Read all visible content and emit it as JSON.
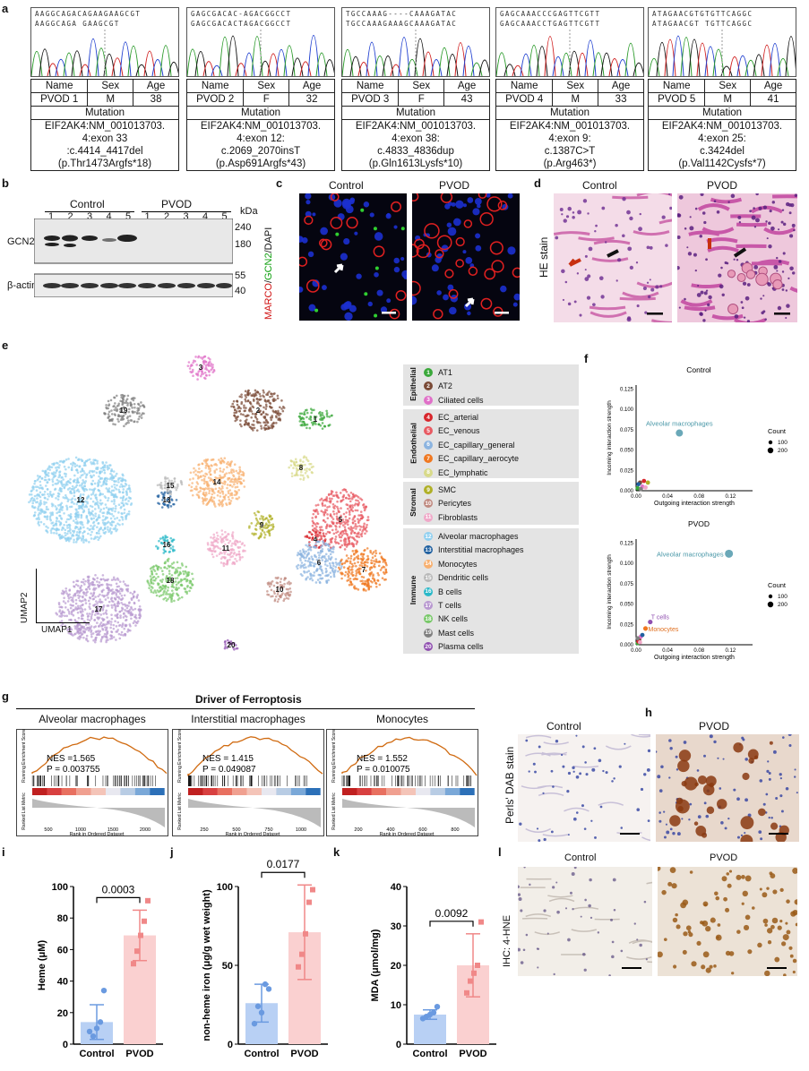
{
  "panel_labels": {
    "a": "a",
    "b": "b",
    "c": "c",
    "d": "d",
    "e": "e",
    "f": "f",
    "g": "g",
    "h": "h",
    "i": "i",
    "j": "j",
    "k": "k",
    "l": "l"
  },
  "panel_a": {
    "patients": [
      {
        "seq_top": "AAGGCAGACAGAAGAAGCGT",
        "seq_bot": "AAGGCAGA          GAAGCGT",
        "name_h": "Name",
        "sex_h": "Sex",
        "age_h": "Age",
        "name": "PVOD 1",
        "sex": "M",
        "age": "38",
        "mut_h": "Mutation",
        "m1": "EIF2AK4:NM_001013703.",
        "m2": "4:exon 33",
        "m3": ":c.4414_4417del",
        "m4": "(p.Thr1473Argfs*18)"
      },
      {
        "seq_top": "GAGCGACAC-AGACGGCCT",
        "seq_bot": "GAGCGACACTAGACGGCCT",
        "name_h": "Name",
        "sex_h": "Sex",
        "age_h": "Age",
        "name": "PVOD 2",
        "sex": "F",
        "age": "32",
        "mut_h": "Mutation",
        "m1": "EIF2AK4:NM_001013703.",
        "m2": "4:exon 12:",
        "m3": "c.2069_2070insT",
        "m4": "(p.Asp691Argfs*43)"
      },
      {
        "seq_top": "TGCCAAAG----CAAAGATAC",
        "seq_bot": "TGCCAAAGAAAGCAAAGATAC",
        "name_h": "Name",
        "sex_h": "Sex",
        "age_h": "Age",
        "name": "PVOD 3",
        "sex": "F",
        "age": "43",
        "mut_h": "Mutation",
        "m1": "EIF2AK4:NM_001013703.",
        "m2": "4:exon 38:",
        "m3": "c.4833_4836dup",
        "m4": "(p.Gln1613Lysfs*10)"
      },
      {
        "seq_top": "GAGCAAACCCGAGTTCGTT",
        "seq_bot": "GAGCAAACCTGAGTTCGTT",
        "name_h": "Name",
        "sex_h": "Sex",
        "age_h": "Age",
        "name": "PVOD 4",
        "sex": "M",
        "age": "33",
        "mut_h": "Mutation",
        "m1": "EIF2AK4:NM_001013703.",
        "m2": "4:exon 9:",
        "m3": "c.1387C>T",
        "m4": "(p.Arg463*)"
      },
      {
        "seq_top": "ATAGAACGTGTGTTCAGGC",
        "seq_bot": "ATAGAACGT TGTTCAGGC",
        "name_h": "Name",
        "sex_h": "Sex",
        "age_h": "Age",
        "name": "PVOD 5",
        "sex": "M",
        "age": "41",
        "mut_h": "Mutation",
        "m1": "EIF2AK4:NM_001013703.",
        "m2": "4:exon 25:",
        "m3": "c.3424del",
        "m4": "(p.Val1142Cysfs*7)"
      }
    ]
  },
  "panel_b": {
    "control": "Control",
    "pvod": "PVOD",
    "lanes": [
      "1",
      "2",
      "3",
      "4",
      "5",
      "1",
      "2",
      "3",
      "4",
      "5"
    ],
    "kda": "kDa",
    "m240": "240",
    "m180": "180",
    "m55": "55",
    "m40": "40",
    "gcn2": "GCN2",
    "actin": "β-actin"
  },
  "panel_c": {
    "control": "Control",
    "pvod": "PVOD",
    "stain_marco": "MARCO",
    "stain_slash1": "/",
    "stain_gcn2": "GCN2",
    "stain_dapi": "/DAPI"
  },
  "panel_d": {
    "control": "Control",
    "pvod": "PVOD",
    "stain": "HE stain"
  },
  "panel_e": {
    "axis_y": "UMAP2",
    "axis_x": "UMAP1",
    "groups": [
      {
        "name": "Epithelial",
        "items": [
          {
            "n": "1",
            "label": "AT1",
            "color": "#3aa83a"
          },
          {
            "n": "2",
            "label": "AT2",
            "color": "#7a4a36"
          },
          {
            "n": "3",
            "label": "Ciliated cells",
            "color": "#e070c8"
          }
        ]
      },
      {
        "name": "Endothelial",
        "items": [
          {
            "n": "4",
            "label": "EC_arterial",
            "color": "#d8262c"
          },
          {
            "n": "5",
            "label": "EC_venous",
            "color": "#e85a62"
          },
          {
            "n": "6",
            "label": "EC_capillary_general",
            "color": "#8cb4e0"
          },
          {
            "n": "7",
            "label": "EC_capillary_aerocyte",
            "color": "#f07820"
          },
          {
            "n": "8",
            "label": "EC_lymphatic",
            "color": "#d8da8a"
          }
        ]
      },
      {
        "name": "Stromal",
        "items": [
          {
            "n": "9",
            "label": "SMC",
            "color": "#b0b028"
          },
          {
            "n": "10",
            "label": "Pericytes",
            "color": "#c08a80"
          },
          {
            "n": "11",
            "label": "Fibroblasts",
            "color": "#f0a8c8"
          }
        ]
      },
      {
        "name": "Immune",
        "items": [
          {
            "n": "12",
            "label": "Alveolar macrophages",
            "color": "#90d0f0"
          },
          {
            "n": "13",
            "label": "Interstitial macrophages",
            "color": "#2060a0"
          },
          {
            "n": "14",
            "label": "Monocytes",
            "color": "#f8b070"
          },
          {
            "n": "15",
            "label": "Dendritic cells",
            "color": "#b8b8b8"
          },
          {
            "n": "16",
            "label": "B cells",
            "color": "#28b8c8"
          },
          {
            "n": "17",
            "label": "T cells",
            "color": "#b898d0"
          },
          {
            "n": "18",
            "label": "NK cells",
            "color": "#78c868"
          },
          {
            "n": "19",
            "label": "Mast cells",
            "color": "#808080"
          },
          {
            "n": "20",
            "label": "Plasma cells",
            "color": "#9050b0"
          }
        ]
      }
    ]
  },
  "panel_f": {
    "plots": [
      {
        "title": "Control",
        "ylabel": "Incoming interaction strength",
        "xlabel": "Outgoing interaction strength",
        "yticks": [
          "0.000",
          "0.025",
          "0.050",
          "0.075",
          "0.100",
          "0.125"
        ],
        "xticks": [
          "0.00",
          "0.04",
          "0.08",
          "0.12"
        ],
        "label1": "Alveolar macrophages",
        "count_title": "Count",
        "count1": "100",
        "count2": "200"
      },
      {
        "title": "PVOD",
        "ylabel": "Incoming interaction strength",
        "xlabel": "Outgoing interaction strength",
        "yticks": [
          "0.000",
          "0.025",
          "0.050",
          "0.075",
          "0.100",
          "0.125"
        ],
        "xticks": [
          "0.00",
          "0.04",
          "0.08",
          "0.12"
        ],
        "label1": "Alveolar macrophages",
        "label2": "T cells",
        "label3": "Monocytes",
        "count_title": "Count",
        "count1": "100",
        "count2": "200"
      }
    ]
  },
  "panel_g": {
    "title": "Driver of Ferroptosis",
    "ylabel1": "Running Enrichment Score",
    "ylabel2": "Ranked List Metric",
    "xlabel": "Rank in Ordered Dataset",
    "plots": [
      {
        "name": "Alveolar macrophages",
        "nes": "NES =1.565",
        "p": "P = 0.003755",
        "ticks": [
          "500",
          "1000",
          "1500",
          "2000"
        ]
      },
      {
        "name": "Interstitial macrophages",
        "nes": "NES = 1.415",
        "p": "P = 0.049087",
        "ticks": [
          "250",
          "500",
          "750",
          "1000"
        ]
      },
      {
        "name": "Monocytes",
        "nes": "NES = 1.552",
        "p": "P = 0.010075",
        "ticks": [
          "200",
          "400",
          "600",
          "800"
        ]
      }
    ]
  },
  "panel_h": {
    "control": "Control",
    "pvod": "PVOD",
    "stain": "Perls' DAB stain"
  },
  "panel_l": {
    "control": "Control",
    "pvod": "PVOD",
    "stain": "IHC: 4-HNE"
  },
  "chart_data": [
    {
      "type": "bar",
      "title": "",
      "ylabel": "Heme (μM)",
      "categories": [
        "Control",
        "PVOD"
      ],
      "values": [
        14,
        69
      ],
      "errors": [
        11,
        16
      ],
      "points": [
        [
          8,
          5,
          10,
          14,
          34
        ],
        [
          51,
          59,
          69,
          78,
          91
        ]
      ],
      "ylim": [
        0,
        100
      ],
      "yticks": [
        "0",
        "20",
        "40",
        "60",
        "80",
        "100"
      ],
      "pvalue": "0.0003"
    },
    {
      "type": "bar",
      "title": "",
      "ylabel": "non-heme iron (μg/g wet weight)",
      "categories": [
        "Control",
        "PVOD"
      ],
      "values": [
        26,
        71
      ],
      "errors": [
        12,
        30
      ],
      "points": [
        [
          13,
          24,
          20,
          38,
          35
        ],
        [
          49,
          57,
          70,
          90,
          98
        ]
      ],
      "ylim": [
        0,
        100
      ],
      "yticks": [
        "0",
        "50",
        "100"
      ],
      "pvalue": "0.0177"
    },
    {
      "type": "bar",
      "title": "",
      "ylabel": "MDA (μmol/mg)",
      "categories": [
        "Control",
        "PVOD"
      ],
      "values": [
        7.5,
        20
      ],
      "errors": [
        1.2,
        8
      ],
      "points": [
        [
          6.5,
          7.0,
          7.5,
          8.0,
          9.5
        ],
        [
          13,
          16,
          18,
          20,
          31
        ]
      ],
      "ylim": [
        0,
        40
      ],
      "yticks": [
        "0",
        "10",
        "20",
        "30",
        "40"
      ],
      "pvalue": "0.0092"
    }
  ]
}
